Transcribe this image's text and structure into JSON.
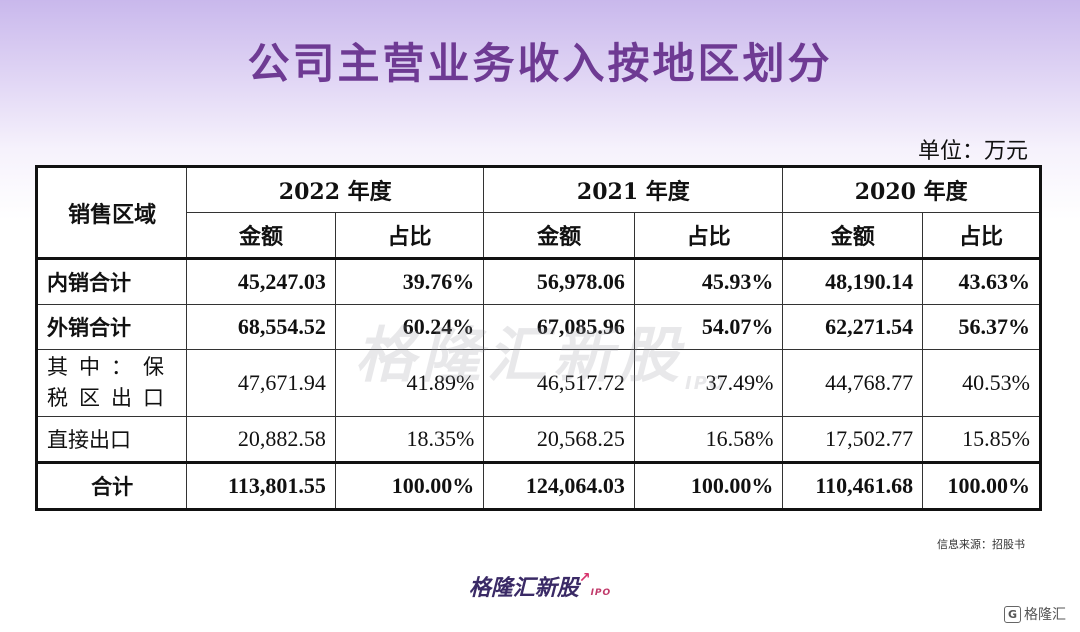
{
  "title": "公司主营业务收入按地区划分",
  "unit": "单位：万元",
  "table": {
    "region_header": "销售区域",
    "years": [
      "2022 年度",
      "2021 年度",
      "2020 年度"
    ],
    "amount_label": "金额",
    "ratio_label": "占比",
    "rows": [
      {
        "label": "内销合计",
        "values": [
          "45,247.03",
          "39.76%",
          "56,978.06",
          "45.93%",
          "48,190.14",
          "43.63%"
        ]
      },
      {
        "label": "外销合计",
        "values": [
          "68,554.52",
          "60.24%",
          "67,085.96",
          "54.07%",
          "62,271.54",
          "56.37%"
        ]
      },
      {
        "label": "其中：保税区出口",
        "values": [
          "47,671.94",
          "41.89%",
          "46,517.72",
          "37.49%",
          "44,768.77",
          "40.53%"
        ]
      },
      {
        "label": "直接出口",
        "values": [
          "20,882.58",
          "18.35%",
          "20,568.25",
          "16.58%",
          "17,502.77",
          "15.85%"
        ]
      },
      {
        "label": "合计",
        "values": [
          "113,801.55",
          "100.00%",
          "124,064.03",
          "100.00%",
          "110,461.68",
          "100.00%"
        ]
      }
    ]
  },
  "source": "信息来源：招股书",
  "watermark": {
    "name": "格隆汇新股",
    "tag": "IPO"
  },
  "logo": {
    "name": "格隆汇新股",
    "tag": "IPO"
  },
  "corner_brand": {
    "icon": "G",
    "name": "格隆汇"
  }
}
